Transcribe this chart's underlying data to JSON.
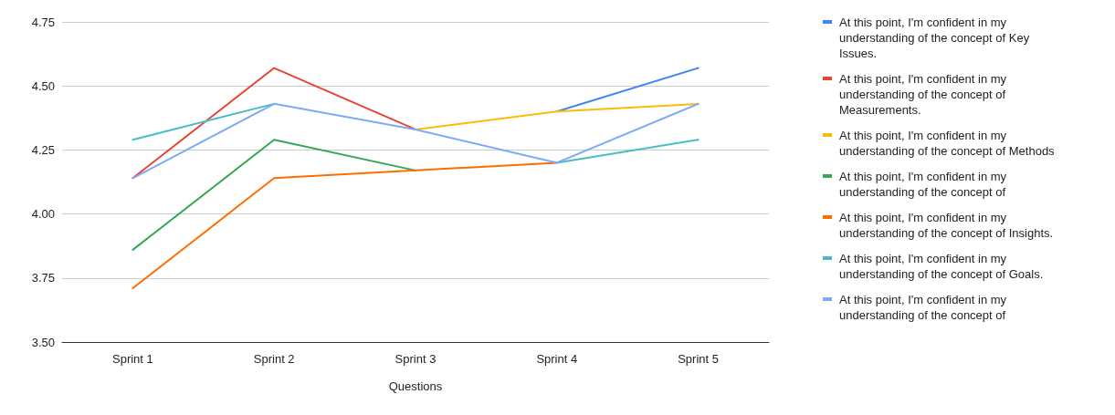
{
  "chart_data": {
    "type": "line",
    "xlabel": "Questions",
    "categories": [
      "Sprint 1",
      "Sprint 2",
      "Sprint 3",
      "Sprint 4",
      "Sprint 5"
    ],
    "ylim": [
      3.5,
      4.75
    ],
    "yticks": [
      {
        "value": 3.5,
        "label": "3.50"
      },
      {
        "value": 3.75,
        "label": "3.75"
      },
      {
        "value": 4,
        "label": "4.00"
      },
      {
        "value": 4.25,
        "label": "4.25"
      },
      {
        "value": 4.5,
        "label": "4.50"
      },
      {
        "value": 4.75,
        "label": "4.75"
      }
    ],
    "grid": "y",
    "legend": "right",
    "marker": "none",
    "line_style": "solid",
    "series": [
      {
        "name": "At this point, I'm confident in my\nunderstanding of the concept of Key\nIssues.",
        "color": "#4285f4",
        "values": [
          null,
          null,
          null,
          4.4,
          4.57
        ]
      },
      {
        "name": "At this point, I'm confident in my\nunderstanding of the concept of\nMeasurements.",
        "color": "#ea4335",
        "values": [
          4.14,
          4.57,
          4.33,
          null,
          null
        ]
      },
      {
        "name": "At this point, I'm confident in my\nunderstanding of the concept of Methods",
        "color": "#fbbc04",
        "values": [
          null,
          null,
          4.33,
          4.4,
          4.43
        ]
      },
      {
        "name": "At this point, I'm confident in my\nunderstanding of the concept of",
        "color": "#34a853",
        "values": [
          3.86,
          4.29,
          4.17,
          null,
          null
        ]
      },
      {
        "name": "At this point, I'm confident in my\nunderstanding of the concept of Insights.",
        "color": "#ff6d01",
        "values": [
          3.71,
          4.14,
          4.17,
          4.2,
          null
        ]
      },
      {
        "name": "At this point, I'm confident in my\nunderstanding of the concept of Goals.",
        "color": "#46bdc6",
        "values": [
          4.29,
          4.43,
          null,
          4.2,
          4.29
        ]
      },
      {
        "name": "At this point, I'm confident in my\nunderstanding of the concept of",
        "color": "#7baaf7",
        "values": [
          4.14,
          4.43,
          4.33,
          4.2,
          4.43
        ]
      }
    ]
  }
}
